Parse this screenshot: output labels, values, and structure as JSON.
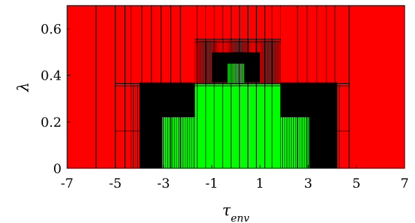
{
  "chart_data": {
    "type": "heatmap",
    "title": "",
    "xlabel": "τ",
    "xlabel_subscript": "env",
    "ylabel": "λ",
    "xlim": [
      -7,
      7
    ],
    "ylim": [
      0,
      0.7
    ],
    "xticks": [
      -7,
      -5,
      -3,
      -1,
      1,
      3,
      5,
      7
    ],
    "yticks": [
      0,
      0.2,
      0.4,
      0.6
    ],
    "ytick_labels": [
      "0",
      "0.2",
      "0.4",
      "0.6"
    ],
    "grid": false,
    "legend": "none",
    "colors": {
      "background": "#ff0000",
      "green": "#00ff00",
      "black": "#000000",
      "cell_edge": "#000000"
    },
    "regions": [
      {
        "state": "black",
        "x0": -4.0,
        "x1": -1.7,
        "y0": 0.0,
        "y1": 0.37
      },
      {
        "state": "black",
        "x0": 1.85,
        "x1": 4.2,
        "y0": 0.0,
        "y1": 0.37
      },
      {
        "state": "black",
        "x0": -1.0,
        "x1": 1.0,
        "y0": 0.37,
        "y1": 0.5
      },
      {
        "state": "black",
        "x0": -3.7,
        "x1": -1.7,
        "y0": 0.16,
        "y1": 0.24
      },
      {
        "state": "black",
        "x0": 1.85,
        "x1": 3.8,
        "y0": 0.16,
        "y1": 0.24
      },
      {
        "state": "green",
        "x0": -1.7,
        "x1": 1.85,
        "y0": 0.0,
        "y1": 0.365
      },
      {
        "state": "green",
        "x0": -0.35,
        "x1": 0.35,
        "y0": 0.365,
        "y1": 0.45
      },
      {
        "state": "green",
        "x0": -3.05,
        "x1": -1.7,
        "y0": 0.0,
        "y1": 0.22
      },
      {
        "state": "green",
        "x0": 1.85,
        "x1": 3.05,
        "y0": 0.0,
        "y1": 0.22
      }
    ],
    "grid_lines": [
      {
        "orient": "v",
        "x": -5.8,
        "y0": 0,
        "y1": 0.7
      },
      {
        "orient": "v",
        "x": -5.0,
        "y0": 0,
        "y1": 0.7
      },
      {
        "orient": "v",
        "x": -4.6,
        "y0": 0,
        "y1": 0.7
      },
      {
        "orient": "v",
        "x": -4.35,
        "y0": 0,
        "y1": 0.7
      },
      {
        "orient": "v",
        "x": -3.9,
        "y0": 0,
        "y1": 0.7
      },
      {
        "orient": "v",
        "x": -3.5,
        "y0": 0,
        "y1": 0.7
      },
      {
        "orient": "v",
        "x": -3.1,
        "y0": 0,
        "y1": 0.7
      },
      {
        "orient": "v",
        "x": -2.7,
        "y0": 0,
        "y1": 0.7
      },
      {
        "orient": "v",
        "x": -2.3,
        "y0": 0,
        "y1": 0.7
      },
      {
        "orient": "v",
        "x": -1.6,
        "y0": 0,
        "y1": 0.7
      },
      {
        "orient": "v",
        "x": -1.25,
        "y0": 0,
        "y1": 0.7
      },
      {
        "orient": "v",
        "x": -0.9,
        "y0": 0,
        "y1": 0.7
      },
      {
        "orient": "v",
        "x": -0.55,
        "y0": 0,
        "y1": 0.7
      },
      {
        "orient": "v",
        "x": -0.2,
        "y0": 0,
        "y1": 0.7
      },
      {
        "orient": "v",
        "x": 0.15,
        "y0": 0,
        "y1": 0.7
      },
      {
        "orient": "v",
        "x": 0.5,
        "y0": 0,
        "y1": 0.7
      },
      {
        "orient": "v",
        "x": 0.85,
        "y0": 0,
        "y1": 0.7
      },
      {
        "orient": "v",
        "x": 1.2,
        "y0": 0,
        "y1": 0.7
      },
      {
        "orient": "v",
        "x": 1.5,
        "y0": 0,
        "y1": 0.7
      },
      {
        "orient": "v",
        "x": 1.85,
        "y0": 0,
        "y1": 0.7
      },
      {
        "orient": "v",
        "x": 2.55,
        "y0": 0,
        "y1": 0.7
      },
      {
        "orient": "v",
        "x": 2.95,
        "y0": 0,
        "y1": 0.7
      },
      {
        "orient": "v",
        "x": 3.35,
        "y0": 0,
        "y1": 0.7
      },
      {
        "orient": "v",
        "x": 3.75,
        "y0": 0,
        "y1": 0.7
      },
      {
        "orient": "v",
        "x": 4.1,
        "y0": 0,
        "y1": 0.7
      },
      {
        "orient": "v",
        "x": 4.7,
        "y0": 0,
        "y1": 0.7
      },
      {
        "orient": "h",
        "y": 0.16,
        "x0": -5.0,
        "x1": -4.0
      },
      {
        "orient": "h",
        "y": 0.16,
        "x0": 4.0,
        "x1": 4.7
      },
      {
        "orient": "h",
        "y": 0.355,
        "x0": -5.0,
        "x1": 4.7
      },
      {
        "orient": "h",
        "y": 0.365,
        "x0": -5.0,
        "x1": 4.7
      },
      {
        "orient": "h",
        "y": 0.545,
        "x0": -1.7,
        "x1": 1.85
      },
      {
        "orient": "h",
        "y": 0.555,
        "x0": -1.7,
        "x1": 1.85
      }
    ],
    "dense_bands": [
      {
        "x0": -4.35,
        "x1": -1.7,
        "y0": 0.0,
        "y1": 0.36,
        "step": 0.09
      },
      {
        "x0": 1.85,
        "x1": 4.35,
        "y0": 0.0,
        "y1": 0.36,
        "step": 0.09
      },
      {
        "x0": -1.7,
        "x1": 1.85,
        "y0": 0.36,
        "y1": 0.55,
        "step": 0.06
      }
    ]
  }
}
